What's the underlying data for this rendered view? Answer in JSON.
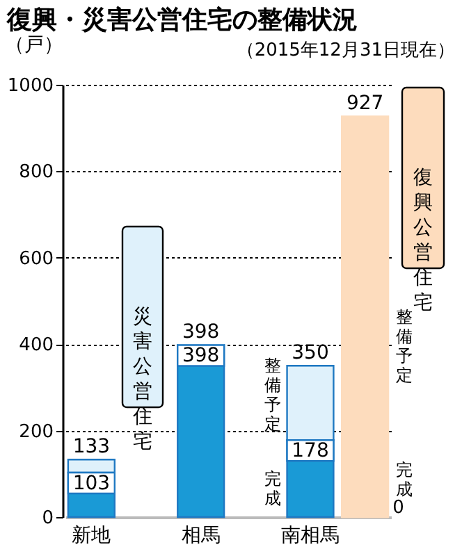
{
  "chart_data": {
    "type": "bar",
    "title": "復興・災害公営住宅の整備状況",
    "subtitle": "（2015年12月31日現在）",
    "ylabel": "（戸）",
    "categories": [
      "新地",
      null,
      "相馬",
      null,
      "南相馬",
      null
    ],
    "stacked": true,
    "series": [
      {
        "name": "完成",
        "colors": [
          "#1a9ad6",
          null,
          "#1a9ad6",
          null,
          "#1a9ad6",
          "#fddcbd"
        ],
        "values": [
          103,
          null,
          398,
          null,
          178,
          0
        ],
        "value_labels": [
          "103",
          null,
          "398",
          null,
          "178",
          "0"
        ]
      },
      {
        "name": "整備予定",
        "colors": [
          "#dff1fb",
          null,
          "#dff1fb",
          null,
          "#dff1fb",
          "#fddcbd"
        ],
        "values": [
          30,
          null,
          0,
          null,
          172,
          927
        ]
      }
    ],
    "totals": [
      "133",
      null,
      "398",
      null,
      "350",
      "927"
    ],
    "ylim": [
      0,
      1000
    ],
    "yticks": [
      0,
      200,
      400,
      600,
      800,
      1000
    ],
    "grid": "y",
    "annotations": [
      "災害公営住宅",
      "復興公営住宅"
    ]
  }
}
